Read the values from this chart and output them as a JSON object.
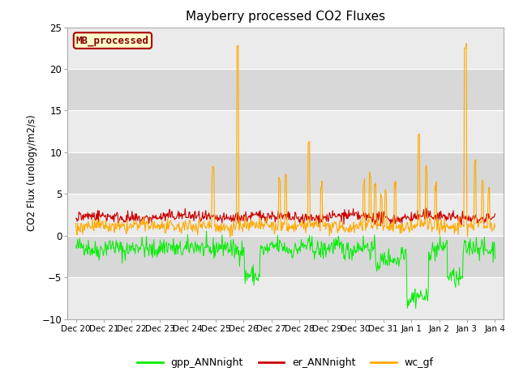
{
  "title": "Mayberry processed CO2 Fluxes",
  "ylabel": "CO2 Flux (urology/m2/s)",
  "ylim": [
    -10,
    25
  ],
  "yticks": [
    -10,
    -5,
    0,
    5,
    10,
    15,
    20,
    25
  ],
  "xtick_labels": [
    "Dec 20",
    "Dec 21",
    "Dec 22",
    "Dec 23",
    "Dec 24",
    "Dec 25",
    "Dec 26",
    "Dec 27",
    "Dec 28",
    "Dec 29",
    "Dec 30",
    "Dec 31",
    "Jan 1",
    "Jan 2",
    "Jan 3",
    "Jan 4"
  ],
  "legend_labels": [
    "gpp_ANNnight",
    "er_ANNnight",
    "wc_gf"
  ],
  "legend_colors": [
    "#00ee00",
    "#cc0000",
    "#ffaa00"
  ],
  "gpp_color": "#00ee00",
  "er_color": "#cc0000",
  "wc_color": "#ffaa00",
  "box_label": "MB_processed",
  "box_facecolor": "#ffffcc",
  "box_edgecolor": "#aa0000",
  "box_textcolor": "#880000",
  "bg_color": "#ffffff",
  "plot_bg_light": "#ebebeb",
  "plot_bg_dark": "#d8d8d8",
  "grid_color": "#ffffff",
  "n_points": 672,
  "seed": 42
}
